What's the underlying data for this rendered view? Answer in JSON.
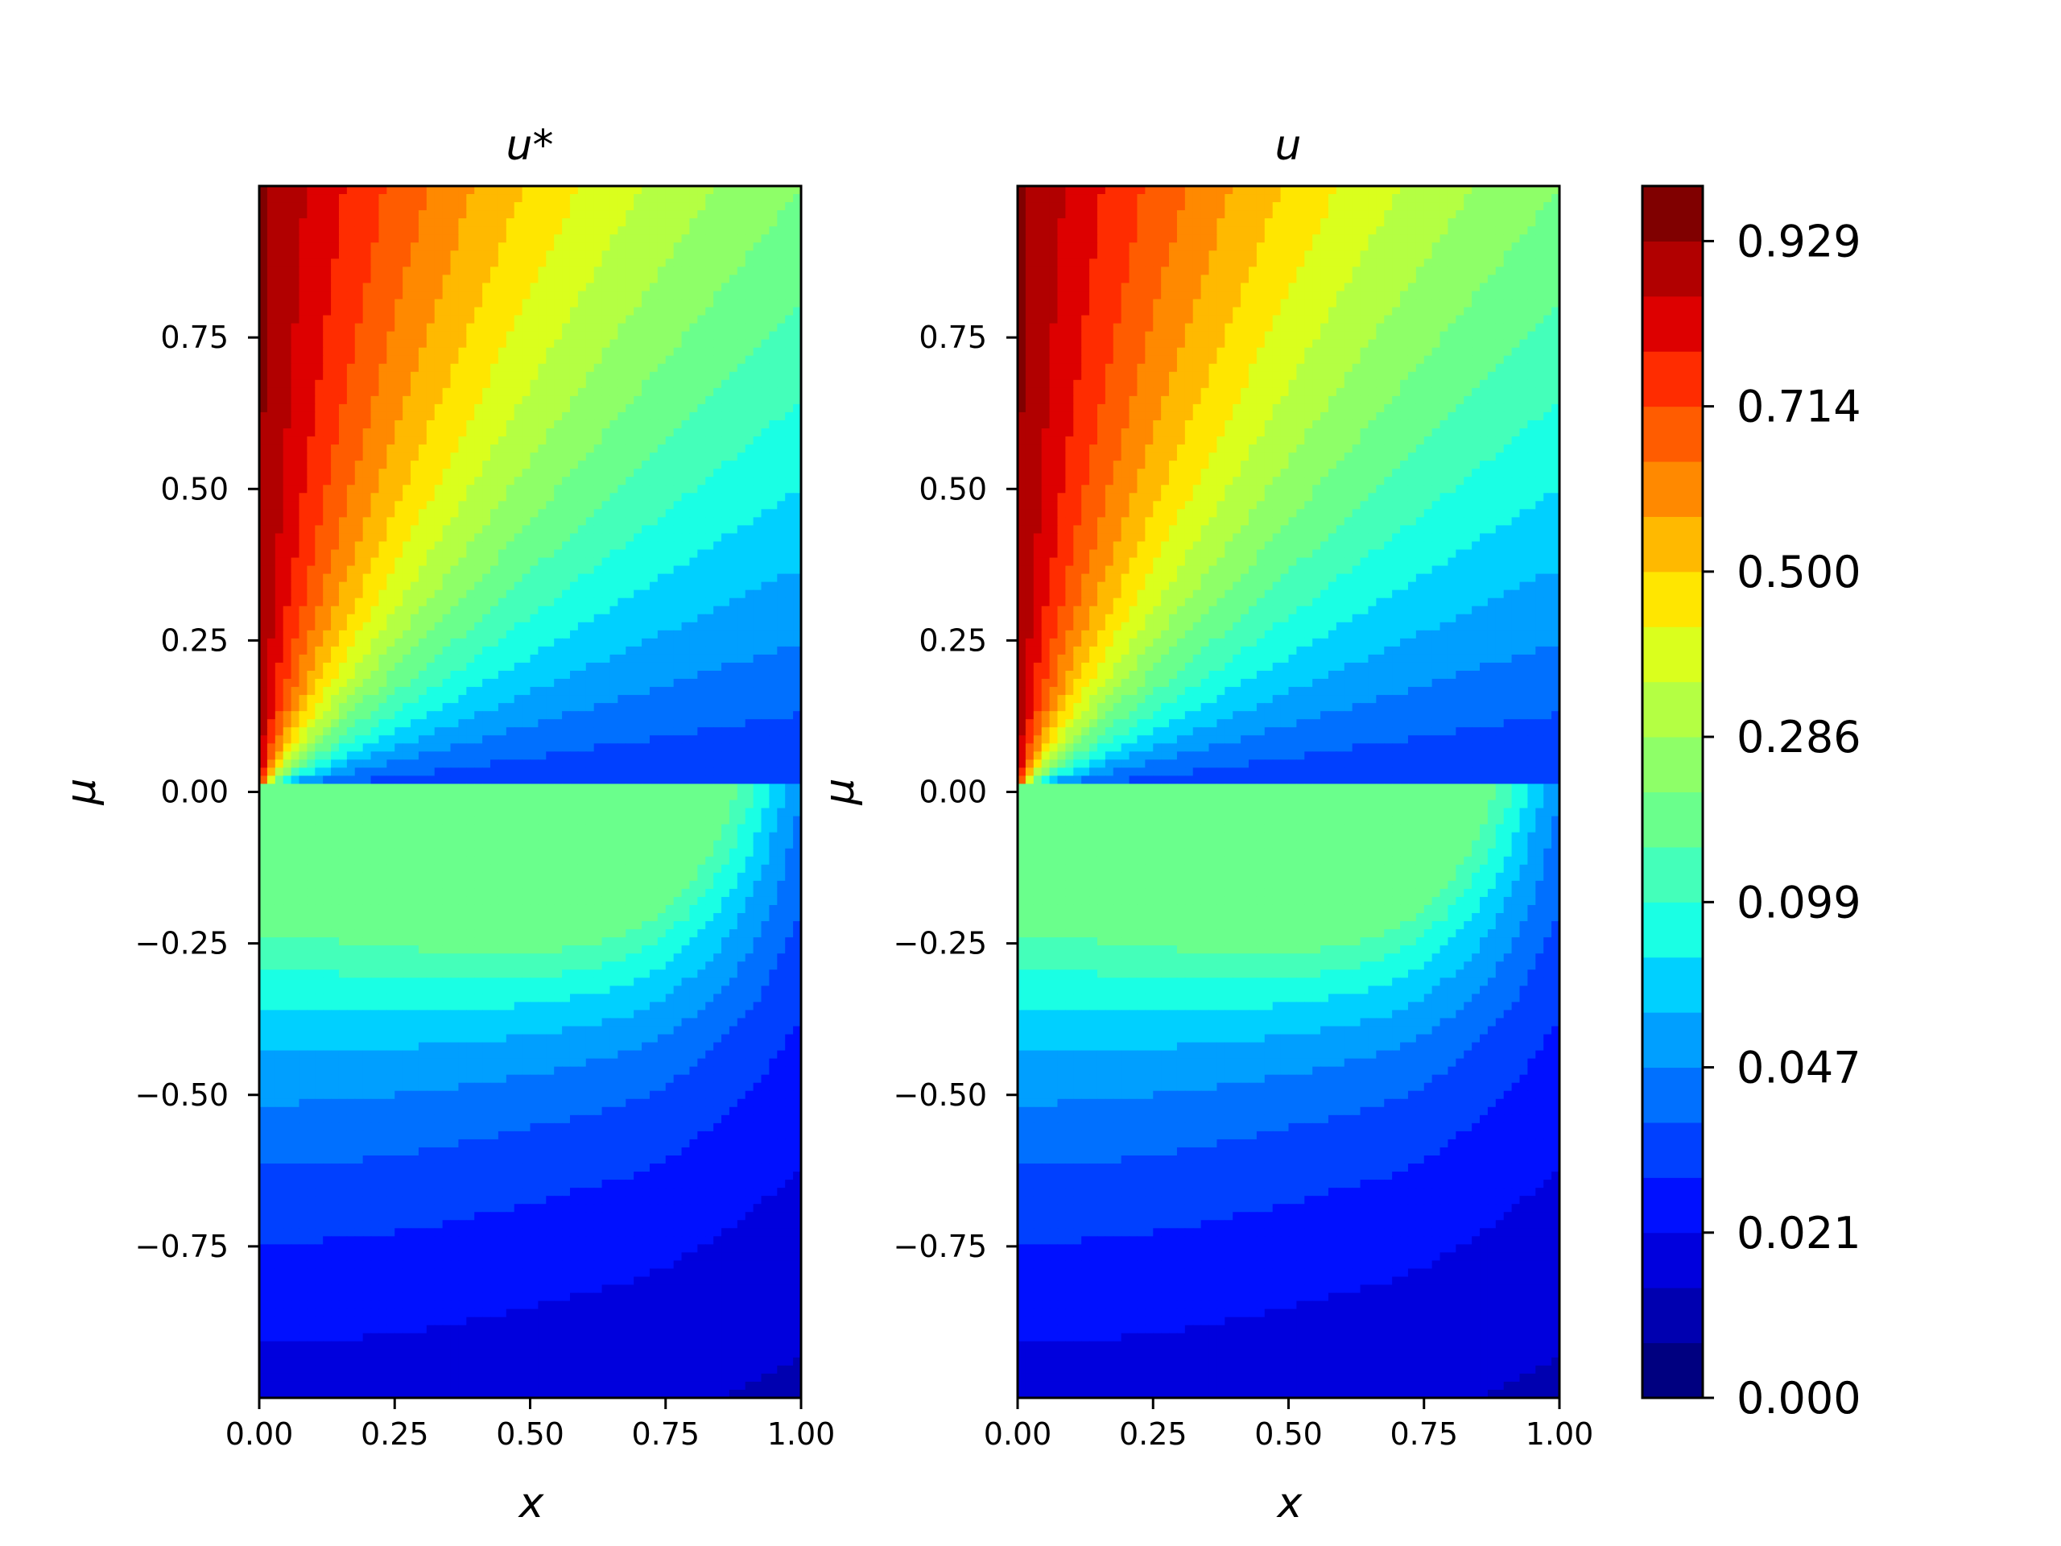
{
  "chart_data": [
    {
      "type": "contour",
      "title": "u*",
      "xlabel": "x",
      "ylabel": "μ",
      "xlim": [
        0,
        1
      ],
      "ylim": [
        -1,
        1
      ],
      "xticks": [
        "0.00",
        "0.25",
        "0.50",
        "0.75",
        "1.00"
      ],
      "yticks": [
        "−0.75",
        "−0.50",
        "−0.25",
        "0.00",
        "0.25",
        "0.50",
        "0.75"
      ],
      "xtick_values": [
        0,
        0.25,
        0.5,
        0.75,
        1.0
      ],
      "ytick_values": [
        -0.75,
        -0.5,
        -0.25,
        0,
        0.25,
        0.5,
        0.75
      ],
      "colormap": "jet"
    },
    {
      "type": "contour",
      "title": "u",
      "xlabel": "x",
      "ylabel": "μ",
      "xlim": [
        0,
        1
      ],
      "ylim": [
        -1,
        1
      ],
      "xticks": [
        "0.00",
        "0.25",
        "0.50",
        "0.75",
        "1.00"
      ],
      "yticks": [
        "−0.75",
        "−0.50",
        "−0.25",
        "0.00",
        "0.25",
        "0.50",
        "0.75"
      ],
      "xtick_values": [
        0,
        0.25,
        0.5,
        0.75,
        1.0
      ],
      "ytick_values": [
        -0.75,
        -0.5,
        -0.25,
        0,
        0.25,
        0.5,
        0.75
      ],
      "colormap": "jet"
    }
  ],
  "colorbar": {
    "levels": 21,
    "tick_labels": [
      "0.000",
      "0.021",
      "0.047",
      "0.099",
      "0.286",
      "0.500",
      "0.714",
      "0.929"
    ],
    "tick_level_index": [
      0,
      3,
      6,
      9,
      12,
      15,
      18,
      21
    ],
    "colors": [
      "#000080",
      "#0000b0",
      "#0000dd",
      "#0010ff",
      "#0040ff",
      "#0070ff",
      "#009fff",
      "#00d0ff",
      "#1affe4",
      "#44ffba",
      "#6aff8c",
      "#8eff68",
      "#b4ff43",
      "#daff1d",
      "#ffe600",
      "#ffb900",
      "#ff8900",
      "#ff5c00",
      "#ff2c00",
      "#dd0000",
      "#b10000",
      "#800000"
    ]
  }
}
